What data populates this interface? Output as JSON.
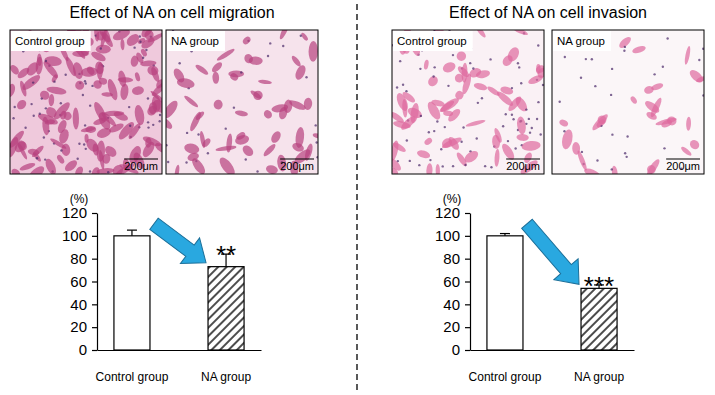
{
  "chart_data": [
    {
      "type": "bar",
      "title": "Effect of NA on cell migration",
      "y_label": "(%)",
      "categories": [
        "Control group",
        "NA group"
      ],
      "values": [
        100,
        73
      ],
      "errors": [
        5,
        11
      ],
      "colors": [
        "#ffffff",
        "#000000"
      ],
      "ylim": [
        0,
        120
      ],
      "yticks": [
        0,
        20,
        40,
        60,
        80,
        100,
        120
      ],
      "annotations": [
        {
          "text": "**",
          "category": "NA group"
        }
      ],
      "images": [
        {
          "label": "Control group",
          "scale_bar": "200μm"
        },
        {
          "label": "NA group",
          "scale_bar": "200μm"
        }
      ]
    },
    {
      "type": "bar",
      "title": "Effect of NA on cell invasion",
      "y_label": "(%)",
      "categories": [
        "Control group",
        "NA group"
      ],
      "values": [
        100,
        54
      ],
      "errors": [
        2,
        3
      ],
      "colors": [
        "#ffffff",
        "#000000"
      ],
      "ylim": [
        0,
        120
      ],
      "yticks": [
        0,
        20,
        40,
        60,
        80,
        100,
        120
      ],
      "annotations": [
        {
          "text": "***",
          "category": "NA group"
        }
      ],
      "images": [
        {
          "label": "Control group",
          "scale_bar": "200μm"
        },
        {
          "label": "NA group",
          "scale_bar": "200μm"
        }
      ]
    }
  ]
}
